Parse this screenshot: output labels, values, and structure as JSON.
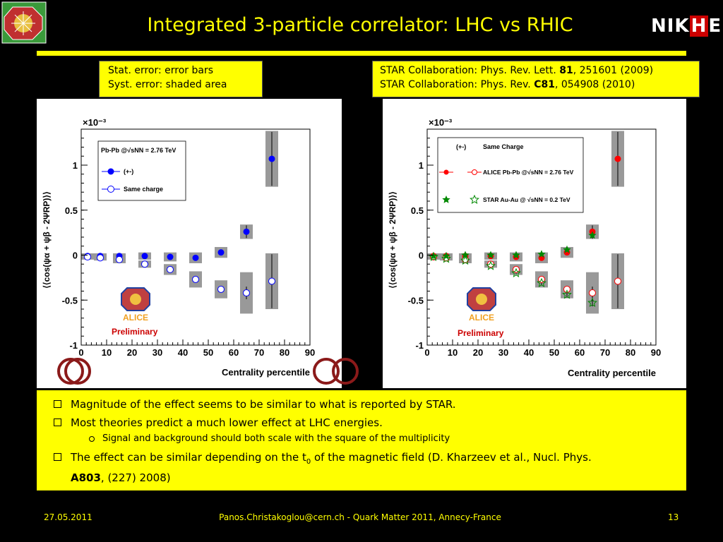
{
  "slide": {
    "title": "Integrated 3-particle correlator: LHC vs RHIC",
    "logo_right": {
      "left": "NIK",
      "mid": "H",
      "right": "EF"
    },
    "error_note": [
      "Stat. error: error bars",
      "Syst. error: shaded area"
    ],
    "references": [
      {
        "pre": "STAR Collaboration: Phys. Rev. Lett. ",
        "bold": "81",
        "post": ", 251601 (2009)"
      },
      {
        "pre": "STAR Collaboration: Phys. Rev. ",
        "bold": "C81",
        "post": ", 054908 (2010)"
      }
    ],
    "bullets": {
      "b1": "Magnitude of the effect seems to be similar to what is reported by STAR.",
      "b2": "Most theories predict a much lower effect at LHC energies.",
      "b2_sub": "Signal and background should both scale with the square of the multiplicity",
      "b3_line1_pre": "The effect can be similar depending on the t",
      "b3_sub0": "0",
      "b3_line1_post": " of the magnetic field (D. Kharzeev et al., Nucl. Phys.",
      "b3_bold": "A803",
      "b3_line2_post": ", (227) 2008)"
    },
    "footer": {
      "date": "27.05.2011",
      "center": "Panos.Christakoglou@cern.ch - Quark Matter 2011, Annecy-France",
      "page": "13"
    },
    "colors": {
      "accent": "#ffff00",
      "blue": "#0000ff",
      "red": "#ff0000",
      "green": "#008800",
      "syst": "#999999"
    }
  },
  "chart_data": [
    {
      "type": "scatter",
      "xlabel": "Centrality percentile",
      "ylabel": "⟨⟨cos(ψα + ψβ - 2ΨRP)⟩⟩",
      "multiplier": "×10⁻³",
      "xlim": [
        0,
        90
      ],
      "ylim": [
        -1,
        1.4
      ],
      "xticks": [
        0,
        10,
        20,
        30,
        40,
        50,
        60,
        70,
        80,
        90
      ],
      "yticks": [
        -1,
        -0.5,
        0,
        0.5,
        1
      ],
      "legend_title": "Pb-Pb @√sNN = 2.76 TeV",
      "stamp": "Preliminary",
      "series": [
        {
          "name": "(+-)",
          "marker": "filled-circle",
          "color": "#0000ff",
          "x": [
            2.5,
            7.5,
            15,
            25,
            35,
            45,
            55,
            65,
            75
          ],
          "y": [
            -0.01,
            -0.01,
            -0.01,
            -0.01,
            -0.02,
            -0.03,
            0.03,
            0.26,
            1.07
          ],
          "stat": [
            0.01,
            0.01,
            0.01,
            0.01,
            0.01,
            0.01,
            0.02,
            0.07,
            0.3
          ],
          "syst": [
            0.03,
            0.03,
            0.03,
            0.04,
            0.05,
            0.06,
            0.06,
            0.08,
            0.31
          ]
        },
        {
          "name": "Same charge",
          "marker": "open-circle",
          "color": "#0000ff",
          "x": [
            2.5,
            7.5,
            15,
            25,
            35,
            45,
            55,
            65,
            75
          ],
          "y": [
            -0.02,
            -0.03,
            -0.05,
            -0.1,
            -0.16,
            -0.27,
            -0.38,
            -0.42,
            -0.29
          ],
          "stat": [
            0.01,
            0.01,
            0.01,
            0.01,
            0.01,
            0.02,
            0.03,
            0.07,
            0.3
          ],
          "syst": [
            0.03,
            0.03,
            0.04,
            0.04,
            0.06,
            0.09,
            0.1,
            0.23,
            0.31
          ]
        }
      ]
    },
    {
      "type": "scatter",
      "xlabel": "Centrality percentile",
      "ylabel": "⟨⟨cos(ψα + ψβ - 2ΨRP)⟩⟩",
      "multiplier": "×10⁻³",
      "xlim": [
        0,
        90
      ],
      "ylim": [
        -1,
        1.4
      ],
      "xticks": [
        0,
        10,
        20,
        30,
        40,
        50,
        60,
        70,
        80,
        90
      ],
      "yticks": [
        -1,
        -0.5,
        0,
        0.5,
        1
      ],
      "legend_header": [
        "(+-)",
        "Same Charge"
      ],
      "legend_rows": [
        "ALICE Pb-Pb @√sNN = 2.76 TeV",
        "STAR Au-Au @ √sNN = 0.2 TeV"
      ],
      "stamp": "Preliminary",
      "series": [
        {
          "name": "ALICE (+-)",
          "marker": "filled-circle",
          "color": "#ff0000",
          "x": [
            2.5,
            7.5,
            15,
            25,
            35,
            45,
            55,
            65,
            75
          ],
          "y": [
            -0.01,
            -0.01,
            -0.01,
            -0.01,
            -0.02,
            -0.03,
            0.03,
            0.26,
            1.07
          ],
          "stat": [
            0.01,
            0.01,
            0.01,
            0.01,
            0.01,
            0.01,
            0.02,
            0.07,
            0.3
          ],
          "syst": [
            0.03,
            0.03,
            0.03,
            0.04,
            0.05,
            0.06,
            0.06,
            0.08,
            0.31
          ]
        },
        {
          "name": "ALICE Same charge",
          "marker": "open-circle",
          "color": "#ff0000",
          "x": [
            2.5,
            7.5,
            15,
            25,
            35,
            45,
            55,
            65,
            75
          ],
          "y": [
            -0.02,
            -0.03,
            -0.05,
            -0.1,
            -0.16,
            -0.27,
            -0.38,
            -0.42,
            -0.29
          ],
          "stat": [
            0.01,
            0.01,
            0.01,
            0.01,
            0.01,
            0.02,
            0.03,
            0.07,
            0.3
          ],
          "syst": [
            0.03,
            0.03,
            0.04,
            0.04,
            0.06,
            0.09,
            0.1,
            0.23,
            0.31
          ]
        },
        {
          "name": "STAR (+-)",
          "marker": "filled-star",
          "color": "#008800",
          "x": [
            2.5,
            7.5,
            15,
            25,
            35,
            45,
            55,
            65
          ],
          "y": [
            -0.01,
            -0.01,
            0.0,
            0.0,
            0.0,
            0.01,
            0.06,
            0.22
          ],
          "stat": [
            0.01,
            0.01,
            0.01,
            0.01,
            0.01,
            0.01,
            0.02,
            0.04
          ]
        },
        {
          "name": "STAR Same charge",
          "marker": "open-star",
          "color": "#008800",
          "x": [
            2.5,
            7.5,
            15,
            25,
            35,
            45,
            55,
            65
          ],
          "y": [
            -0.02,
            -0.04,
            -0.06,
            -0.12,
            -0.2,
            -0.31,
            -0.44,
            -0.53
          ],
          "stat": [
            0.01,
            0.01,
            0.01,
            0.01,
            0.01,
            0.02,
            0.03,
            0.04
          ]
        }
      ]
    }
  ]
}
